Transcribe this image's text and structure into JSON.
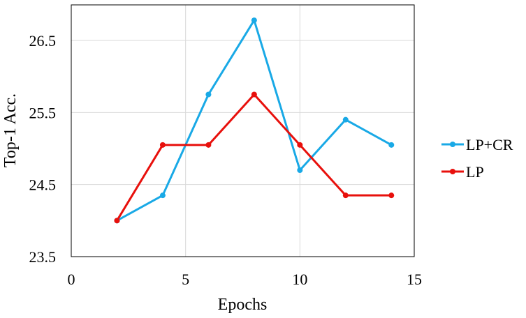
{
  "chart_data": {
    "type": "line",
    "xlabel": "Epochs",
    "ylabel": "Top-1 Acc.",
    "xlim": [
      0,
      15
    ],
    "ylim": [
      23.5,
      26.5
    ],
    "xticks": [
      0,
      5,
      10,
      15
    ],
    "yticks": [
      23.5,
      24.5,
      25.5,
      26.5
    ],
    "xtick_labels": [
      "0",
      "5",
      "10",
      "15"
    ],
    "ytick_labels": [
      "23.5",
      "24.5",
      "25.5",
      "26.5"
    ],
    "grid": true,
    "legend_position": "right",
    "series": [
      {
        "name": "LP+CR",
        "color": "#19a9e6",
        "x": [
          2,
          4,
          6,
          8,
          10,
          12,
          14
        ],
        "y": [
          24.0,
          24.35,
          25.75,
          26.78,
          24.7,
          25.4,
          25.05
        ]
      },
      {
        "name": "LP",
        "color": "#e8100c",
        "x": [
          2,
          4,
          6,
          8,
          10,
          12,
          14
        ],
        "y": [
          24.0,
          25.05,
          25.05,
          25.75,
          25.05,
          24.35,
          24.35
        ]
      }
    ]
  }
}
